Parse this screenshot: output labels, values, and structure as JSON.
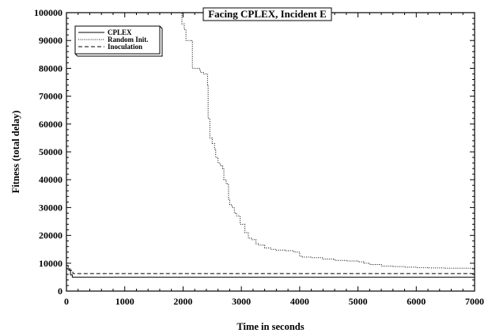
{
  "chart_data": {
    "type": "line",
    "title": "Facing CPLEX, Incident E",
    "xlabel": "Time in seconds",
    "ylabel": "Fitness (total delay)",
    "xlim": [
      0,
      7000
    ],
    "ylim": [
      0,
      100000
    ],
    "x_ticks": [
      0,
      1000,
      2000,
      3000,
      4000,
      5000,
      6000,
      7000
    ],
    "y_ticks": [
      0,
      10000,
      20000,
      30000,
      40000,
      50000,
      60000,
      70000,
      80000,
      90000,
      100000
    ],
    "grid": false,
    "legend_position": "top-left",
    "series": [
      {
        "name": "CPLEX",
        "style": "solid",
        "x": [
          0,
          40,
          70,
          100,
          7000
        ],
        "y": [
          8000,
          7500,
          5800,
          5000,
          5000
        ]
      },
      {
        "name": "Random Init.",
        "style": "dotted",
        "x": [
          1920,
          1980,
          2020,
          2050,
          2150,
          2160,
          2280,
          2300,
          2350,
          2420,
          2430,
          2460,
          2500,
          2540,
          2560,
          2600,
          2640,
          2680,
          2700,
          2740,
          2780,
          2800,
          2840,
          2880,
          2920,
          2980,
          3060,
          3120,
          3180,
          3250,
          3300,
          3400,
          3500,
          3600,
          3750,
          3900,
          4000,
          4050,
          4200,
          4400,
          4600,
          4800,
          5000,
          5100,
          5200,
          5400,
          5600,
          5800,
          6000,
          6200,
          6500,
          7000
        ],
        "y": [
          100000,
          96000,
          94000,
          90000,
          89500,
          80000,
          79500,
          78500,
          78000,
          74000,
          62000,
          55000,
          53000,
          51000,
          48000,
          46000,
          45000,
          44000,
          40000,
          38500,
          33000,
          31000,
          30000,
          28000,
          27000,
          24000,
          21000,
          19000,
          18500,
          17000,
          16500,
          15500,
          15000,
          14700,
          14500,
          14000,
          12500,
          12200,
          12000,
          11500,
          11000,
          10800,
          10500,
          10000,
          9500,
          9000,
          8800,
          8600,
          8400,
          8300,
          8200,
          8000
        ]
      },
      {
        "name": "Inoculation",
        "style": "dashed",
        "x": [
          0,
          30,
          60,
          110,
          7000
        ],
        "y": [
          9200,
          8500,
          7500,
          6300,
          6300
        ]
      }
    ]
  },
  "colors": {
    "line": "#000000",
    "background": "#ffffff"
  }
}
